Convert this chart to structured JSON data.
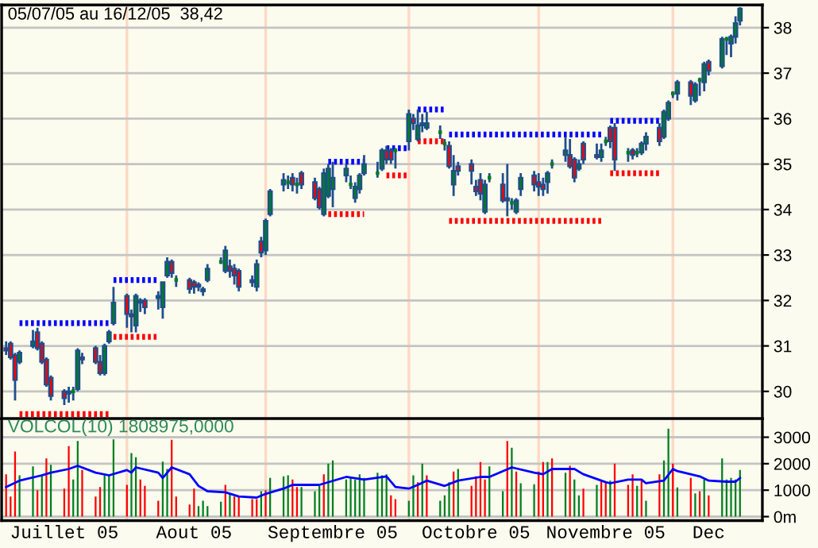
{
  "chart_data": [
    {
      "type": "candlestick",
      "title": "05/07/05 au 16/12/05  38,42",
      "x": [
        "2005-07-05",
        "2005-07-06",
        "2005-07-07",
        "2005-07-08",
        "2005-07-11",
        "2005-07-12",
        "2005-07-13",
        "2005-07-14",
        "2005-07-15",
        "2005-07-18",
        "2005-07-19",
        "2005-07-20",
        "2005-07-21",
        "2005-07-22",
        "2005-07-25",
        "2005-07-26",
        "2005-07-27",
        "2005-07-28",
        "2005-07-29",
        "2005-08-01",
        "2005-08-02",
        "2005-08-03",
        "2005-08-04",
        "2005-08-05",
        "2005-08-08",
        "2005-08-09",
        "2005-08-10",
        "2005-08-11",
        "2005-08-12",
        "2005-08-15",
        "2005-08-16",
        "2005-08-17",
        "2005-08-18",
        "2005-08-19",
        "2005-08-22",
        "2005-08-23",
        "2005-08-24",
        "2005-08-25",
        "2005-08-26",
        "2005-08-29",
        "2005-08-30",
        "2005-08-31",
        "2005-09-01",
        "2005-09-02",
        "2005-09-05",
        "2005-09-06",
        "2005-09-07",
        "2005-09-08",
        "2005-09-09",
        "2005-09-12",
        "2005-09-13",
        "2005-09-14",
        "2005-09-15",
        "2005-09-16",
        "2005-09-19",
        "2005-09-20",
        "2005-09-21",
        "2005-09-22",
        "2005-09-23",
        "2005-09-26",
        "2005-09-27",
        "2005-09-28",
        "2005-09-29",
        "2005-09-30",
        "2005-10-03",
        "2005-10-04",
        "2005-10-05",
        "2005-10-06",
        "2005-10-07",
        "2005-10-10",
        "2005-10-11",
        "2005-10-12",
        "2005-10-13",
        "2005-10-14",
        "2005-10-17",
        "2005-10-18",
        "2005-10-19",
        "2005-10-20",
        "2005-10-21",
        "2005-10-24",
        "2005-10-25",
        "2005-10-26",
        "2005-10-27",
        "2005-10-28",
        "2005-10-31",
        "2005-11-01",
        "2005-11-02",
        "2005-11-03",
        "2005-11-04",
        "2005-11-07",
        "2005-11-08",
        "2005-11-09",
        "2005-11-10",
        "2005-11-11",
        "2005-11-14",
        "2005-11-15",
        "2005-11-16",
        "2005-11-17",
        "2005-11-18",
        "2005-11-21",
        "2005-11-22",
        "2005-11-23",
        "2005-11-24",
        "2005-11-25",
        "2005-11-28",
        "2005-11-29",
        "2005-11-30",
        "2005-12-01",
        "2005-12-02",
        "2005-12-05",
        "2005-12-06",
        "2005-12-07",
        "2005-12-08",
        "2005-12-09",
        "2005-12-12",
        "2005-12-13",
        "2005-12-14",
        "2005-12-15",
        "2005-12-16"
      ],
      "ohlc": [
        [
          30.95,
          31.1,
          30.8,
          30.9
        ],
        [
          31.05,
          31.1,
          30.7,
          30.75
        ],
        [
          30.8,
          30.85,
          29.8,
          30.25
        ],
        [
          30.65,
          30.9,
          30.6,
          30.85
        ],
        [
          31.0,
          31.35,
          30.95,
          31.1
        ],
        [
          31.3,
          31.4,
          30.9,
          30.95
        ],
        [
          31.05,
          31.1,
          30.6,
          30.65
        ],
        [
          30.7,
          30.75,
          30.1,
          30.15
        ],
        [
          30.3,
          30.35,
          29.8,
          29.9
        ],
        [
          30.0,
          30.05,
          29.7,
          29.85
        ],
        [
          29.95,
          30.1,
          29.75,
          30.0
        ],
        [
          30.0,
          30.1,
          29.8,
          30.0
        ],
        [
          30.05,
          30.95,
          30.0,
          30.9
        ],
        [
          30.75,
          30.85,
          30.6,
          30.7
        ],
        [
          30.95,
          31.0,
          30.6,
          30.65
        ],
        [
          30.65,
          30.8,
          30.35,
          30.4
        ],
        [
          30.4,
          31.05,
          30.35,
          31.0
        ],
        [
          31.1,
          31.35,
          31.05,
          31.3
        ],
        [
          31.5,
          32.3,
          31.45,
          31.95
        ],
        [
          32.1,
          32.15,
          31.4,
          31.7
        ],
        [
          31.7,
          31.8,
          31.3,
          31.65
        ],
        [
          31.45,
          32.15,
          31.3,
          32.1
        ],
        [
          31.95,
          32.05,
          31.75,
          32.0
        ],
        [
          32.0,
          32.05,
          31.7,
          31.85
        ],
        [
          32.05,
          32.2,
          31.8,
          32.1
        ],
        [
          31.85,
          32.4,
          31.6,
          32.4
        ],
        [
          32.55,
          32.95,
          32.5,
          32.85
        ],
        [
          32.85,
          32.9,
          32.5,
          32.6
        ],
        [
          32.45,
          32.55,
          32.3,
          32.45
        ],
        [
          32.45,
          32.5,
          32.15,
          32.25
        ],
        [
          32.4,
          32.45,
          32.15,
          32.3
        ],
        [
          32.35,
          32.4,
          32.2,
          32.3
        ],
        [
          32.2,
          32.3,
          32.1,
          32.25
        ],
        [
          32.45,
          32.8,
          32.4,
          32.7
        ],
        [
          32.85,
          32.95,
          32.8,
          32.85
        ],
        [
          32.65,
          33.2,
          32.6,
          33.1
        ],
        [
          32.75,
          32.9,
          32.5,
          32.65
        ],
        [
          32.7,
          32.8,
          32.35,
          32.55
        ],
        [
          32.65,
          32.7,
          32.2,
          32.3
        ],
        [
          32.45,
          32.55,
          32.3,
          32.4
        ],
        [
          32.3,
          32.9,
          32.2,
          32.8
        ],
        [
          33.3,
          33.4,
          32.95,
          33.05
        ],
        [
          33.1,
          33.8,
          33.0,
          33.75
        ],
        [
          33.9,
          34.45,
          33.85,
          34.4
        ],
        [
          34.55,
          34.8,
          34.4,
          34.65
        ],
        [
          34.6,
          34.75,
          34.45,
          34.6
        ],
        [
          34.7,
          34.8,
          34.4,
          34.55
        ],
        [
          34.55,
          34.7,
          34.35,
          34.55
        ],
        [
          34.8,
          34.85,
          34.45,
          34.55
        ],
        [
          34.6,
          34.7,
          34.2,
          34.25
        ],
        [
          34.45,
          34.5,
          34.0,
          34.05
        ],
        [
          33.9,
          34.9,
          33.85,
          34.8
        ],
        [
          34.3,
          35.0,
          34.25,
          34.9
        ],
        [
          34.45,
          35.05,
          34.05,
          34.7
        ],
        [
          34.75,
          35.0,
          34.6,
          34.9
        ],
        [
          34.55,
          34.75,
          34.45,
          34.55
        ],
        [
          34.25,
          34.6,
          34.15,
          34.5
        ],
        [
          34.45,
          34.8,
          34.35,
          34.75
        ],
        [
          34.8,
          35.2,
          34.75,
          35.0
        ],
        [
          34.8,
          35.05,
          34.7,
          34.8
        ],
        [
          34.9,
          35.35,
          34.85,
          35.3
        ],
        [
          35.3,
          35.4,
          35.0,
          35.1
        ],
        [
          35.3,
          35.35,
          35.0,
          35.1
        ],
        [
          35.3,
          35.35,
          34.9,
          35.3
        ],
        [
          35.5,
          36.2,
          35.3,
          36.1
        ],
        [
          36.0,
          36.1,
          35.75,
          35.9
        ],
        [
          35.55,
          36.2,
          35.5,
          35.85
        ],
        [
          35.85,
          36.1,
          35.7,
          35.9
        ],
        [
          35.8,
          36.15,
          35.75,
          35.9
        ],
        [
          35.7,
          35.85,
          35.55,
          35.7
        ],
        [
          35.45,
          35.55,
          35.3,
          35.45
        ],
        [
          35.4,
          35.5,
          34.9,
          34.95
        ],
        [
          34.55,
          35.2,
          34.3,
          34.85
        ],
        [
          34.95,
          35.05,
          34.75,
          34.85
        ],
        [
          35.0,
          35.1,
          34.55,
          34.85
        ],
        [
          34.5,
          34.65,
          34.3,
          34.4
        ],
        [
          34.65,
          34.8,
          34.2,
          34.35
        ],
        [
          33.95,
          34.65,
          33.9,
          34.55
        ],
        [
          34.7,
          34.8,
          34.6,
          34.7
        ],
        [
          34.55,
          34.8,
          34.15,
          34.2
        ],
        [
          34.25,
          35.0,
          33.85,
          34.2
        ],
        [
          34.15,
          34.25,
          34.0,
          34.15
        ],
        [
          33.95,
          34.25,
          33.9,
          34.2
        ],
        [
          34.45,
          34.8,
          34.3,
          34.7
        ],
        [
          34.75,
          34.85,
          34.4,
          34.55
        ],
        [
          34.6,
          34.8,
          34.3,
          34.5
        ],
        [
          34.55,
          34.7,
          34.3,
          34.45
        ],
        [
          34.6,
          34.85,
          34.35,
          34.8
        ],
        [
          35.0,
          35.1,
          34.9,
          35.0
        ],
        [
          35.2,
          35.6,
          35.05,
          35.3
        ],
        [
          35.2,
          35.55,
          34.9,
          34.95
        ],
        [
          35.1,
          35.15,
          34.6,
          34.7
        ],
        [
          34.9,
          35.1,
          34.85,
          35.0
        ],
        [
          35.45,
          35.5,
          35.0,
          35.1
        ],
        [
          35.2,
          35.45,
          35.1,
          35.15
        ],
        [
          35.15,
          35.45,
          35.05,
          35.3
        ],
        [
          35.5,
          35.6,
          35.4,
          35.5
        ],
        [
          35.8,
          35.85,
          35.35,
          35.5
        ],
        [
          35.8,
          35.9,
          34.85,
          35.1
        ],
        [
          35.25,
          35.35,
          35.05,
          35.25
        ],
        [
          35.3,
          35.35,
          35.1,
          35.2
        ],
        [
          35.25,
          35.35,
          35.15,
          35.25
        ],
        [
          35.25,
          35.5,
          35.2,
          35.45
        ],
        [
          35.45,
          35.7,
          35.3,
          35.6
        ],
        [
          35.8,
          35.9,
          35.4,
          35.5
        ],
        [
          35.6,
          36.2,
          35.55,
          36.15
        ],
        [
          36.0,
          36.4,
          35.95,
          36.35
        ],
        [
          36.55,
          36.6,
          36.45,
          36.55
        ],
        [
          36.55,
          36.85,
          36.4,
          36.8
        ],
        [
          36.8,
          36.85,
          36.3,
          36.5
        ],
        [
          36.4,
          36.8,
          36.35,
          36.75
        ],
        [
          36.85,
          36.9,
          36.5,
          36.85
        ],
        [
          36.8,
          37.25,
          36.6,
          37.2
        ],
        [
          37.25,
          37.3,
          36.95,
          37.05
        ],
        [
          37.15,
          37.8,
          37.1,
          37.75
        ],
        [
          37.75,
          37.8,
          37.4,
          37.75
        ],
        [
          37.65,
          37.85,
          37.35,
          37.8
        ],
        [
          37.8,
          38.25,
          37.65,
          38.1
        ],
        [
          38.15,
          38.45,
          38.05,
          38.42
        ]
      ],
      "colors": [
        "#ff0000",
        "#ff0000",
        "#ff0000",
        "#007f1f",
        "#007f1f",
        "#ff0000",
        "#ff0000",
        "#ff0000",
        "#ff0000",
        "#ff0000",
        "#007f1f",
        "#007f1f",
        "#007f1f",
        "#ff0000",
        "#ff0000",
        "#ff0000",
        "#007f1f",
        "#007f1f",
        "#007f1f",
        "#ff0000",
        "#ff0000",
        "#007f1f",
        "#007f1f",
        "#ff0000",
        "#007f1f",
        "#007f1f",
        "#007f1f",
        "#ff0000",
        "#007f1f",
        "#ff0000",
        "#ff0000",
        "#ff0000",
        "#007f1f",
        "#007f1f",
        "#007f1f",
        "#007f1f",
        "#ff0000",
        "#ff0000",
        "#ff0000",
        "#ff0000",
        "#007f1f",
        "#ff0000",
        "#007f1f",
        "#007f1f",
        "#007f1f",
        "#007f1f",
        "#ff0000",
        "#007f1f",
        "#ff0000",
        "#ff0000",
        "#ff0000",
        "#007f1f",
        "#007f1f",
        "#007f1f",
        "#007f1f",
        "#007f1f",
        "#007f1f",
        "#007f1f",
        "#007f1f",
        "#007f1f",
        "#007f1f",
        "#ff0000",
        "#ff0000",
        "#007f1f",
        "#007f1f",
        "#ff0000",
        "#007f1f",
        "#007f1f",
        "#007f1f",
        "#007f1f",
        "#007f1f",
        "#ff0000",
        "#007f1f",
        "#ff0000",
        "#ff0000",
        "#ff0000",
        "#ff0000",
        "#007f1f",
        "#007f1f",
        "#ff0000",
        "#ff0000",
        "#007f1f",
        "#007f1f",
        "#007f1f",
        "#ff0000",
        "#ff0000",
        "#ff0000",
        "#007f1f",
        "#007f1f",
        "#007f1f",
        "#ff0000",
        "#ff0000",
        "#007f1f",
        "#ff0000",
        "#ff0000",
        "#007f1f",
        "#007f1f",
        "#ff0000",
        "#ff0000",
        "#007f1f",
        "#ff0000",
        "#007f1f",
        "#007f1f",
        "#007f1f",
        "#ff0000",
        "#007f1f",
        "#007f1f",
        "#007f1f",
        "#007f1f",
        "#ff0000",
        "#007f1f",
        "#007f1f",
        "#007f1f",
        "#ff0000",
        "#007f1f",
        "#007f1f",
        "#007f1f",
        "#007f1f",
        "#007f1f"
      ],
      "series": [
        {
          "type": "line",
          "x": [
            "2005-07-08",
            "2005-07-28"
          ],
          "values": [
            31.5,
            31.5
          ],
          "color": "#0000ff",
          "line_style": "dotted"
        },
        {
          "type": "line",
          "x": [
            "2005-07-29",
            "2005-08-08"
          ],
          "values": [
            32.45,
            32.45
          ],
          "color": "#0000ff",
          "line_style": "dotted"
        },
        {
          "type": "line",
          "x": [
            "2005-09-15",
            "2005-09-23"
          ],
          "values": [
            35.05,
            35.05
          ],
          "color": "#0000ff",
          "line_style": "dotted"
        },
        {
          "type": "line",
          "x": [
            "2005-09-28",
            "2005-10-03"
          ],
          "values": [
            35.35,
            35.35
          ],
          "color": "#0000ff",
          "line_style": "dotted"
        },
        {
          "type": "line",
          "x": [
            "2005-10-05",
            "2005-10-11"
          ],
          "values": [
            36.2,
            36.2
          ],
          "color": "#0000ff",
          "line_style": "dotted"
        },
        {
          "type": "line",
          "x": [
            "2005-10-12",
            "2005-11-15"
          ],
          "values": [
            35.65,
            35.65
          ],
          "color": "#0000ff",
          "line_style": "dotted"
        },
        {
          "type": "line",
          "x": [
            "2005-11-17",
            "2005-11-28"
          ],
          "values": [
            35.95,
            35.95
          ],
          "color": "#0000ff",
          "line_style": "dotted"
        },
        {
          "type": "line",
          "x": [
            "2005-07-08",
            "2005-07-28"
          ],
          "values": [
            29.5,
            29.5
          ],
          "color": "#ff0000",
          "line_style": "dotted"
        },
        {
          "type": "line",
          "x": [
            "2005-07-29",
            "2005-08-08"
          ],
          "values": [
            31.2,
            31.2
          ],
          "color": "#ff0000",
          "line_style": "dotted"
        },
        {
          "type": "line",
          "x": [
            "2005-09-15",
            "2005-09-23"
          ],
          "values": [
            33.9,
            33.9
          ],
          "color": "#ff0000",
          "line_style": "dotted"
        },
        {
          "type": "line",
          "x": [
            "2005-09-28",
            "2005-10-03"
          ],
          "values": [
            34.75,
            34.75
          ],
          "color": "#ff0000",
          "line_style": "dotted"
        },
        {
          "type": "line",
          "x": [
            "2005-10-05",
            "2005-10-11"
          ],
          "values": [
            35.5,
            35.5
          ],
          "color": "#ff0000",
          "line_style": "dotted"
        },
        {
          "type": "line",
          "x": [
            "2005-10-12",
            "2005-11-15"
          ],
          "values": [
            33.75,
            33.75
          ],
          "color": "#ff0000",
          "line_style": "dotted"
        },
        {
          "type": "line",
          "x": [
            "2005-11-17",
            "2005-11-28"
          ],
          "values": [
            34.8,
            34.8
          ],
          "color": "#ff0000",
          "line_style": "dotted"
        }
      ],
      "xlim": [
        "2005-07-04",
        "2005-12-21"
      ],
      "ylim": [
        29.4,
        38.5
      ],
      "yticks": [
        30,
        31,
        32,
        33,
        34,
        35,
        36,
        37,
        38
      ],
      "grid": "y",
      "tick_labels": "y",
      "ref_lines": [
        {
          "axis": "x",
          "value": "2005-08-01",
          "color": "#ffd8c4"
        },
        {
          "axis": "x",
          "value": "2005-09-01",
          "color": "#ffd8c4"
        },
        {
          "axis": "x",
          "value": "2005-10-03",
          "color": "#ffd8c4"
        },
        {
          "axis": "x",
          "value": "2005-11-01",
          "color": "#ffd8c4"
        },
        {
          "axis": "x",
          "value": "2005-12-01",
          "color": "#ffd8c4"
        }
      ]
    },
    {
      "type": "bar",
      "title": "VOLCOL(10) 1808975,0000",
      "series": [
        {
          "type": "bar",
          "x": [
            "2005-07-05",
            "2005-07-06",
            "2005-07-07",
            "2005-07-08",
            "2005-07-11",
            "2005-07-12",
            "2005-07-13",
            "2005-07-14",
            "2005-07-15",
            "2005-07-18",
            "2005-07-19",
            "2005-07-20",
            "2005-07-21",
            "2005-07-22",
            "2005-07-25",
            "2005-07-26",
            "2005-07-27",
            "2005-07-28",
            "2005-07-29",
            "2005-08-01",
            "2005-08-02",
            "2005-08-03",
            "2005-08-04",
            "2005-08-05",
            "2005-08-08",
            "2005-08-09",
            "2005-08-10",
            "2005-08-11",
            "2005-08-12",
            "2005-08-15",
            "2005-08-16",
            "2005-08-17",
            "2005-08-18",
            "2005-08-19",
            "2005-08-22",
            "2005-08-23",
            "2005-08-24",
            "2005-08-25",
            "2005-08-26",
            "2005-08-29",
            "2005-08-30",
            "2005-08-31",
            "2005-09-01",
            "2005-09-02",
            "2005-09-05",
            "2005-09-06",
            "2005-09-07",
            "2005-09-08",
            "2005-09-09",
            "2005-09-12",
            "2005-09-13",
            "2005-09-14",
            "2005-09-15",
            "2005-09-16",
            "2005-09-19",
            "2005-09-20",
            "2005-09-21",
            "2005-09-22",
            "2005-09-23",
            "2005-09-26",
            "2005-09-27",
            "2005-09-28",
            "2005-09-29",
            "2005-09-30",
            "2005-10-03",
            "2005-10-04",
            "2005-10-05",
            "2005-10-06",
            "2005-10-07",
            "2005-10-10",
            "2005-10-11",
            "2005-10-12",
            "2005-10-13",
            "2005-10-14",
            "2005-10-17",
            "2005-10-18",
            "2005-10-19",
            "2005-10-20",
            "2005-10-21",
            "2005-10-24",
            "2005-10-25",
            "2005-10-26",
            "2005-10-27",
            "2005-10-28",
            "2005-10-31",
            "2005-11-01",
            "2005-11-02",
            "2005-11-03",
            "2005-11-04",
            "2005-11-07",
            "2005-11-08",
            "2005-11-09",
            "2005-11-10",
            "2005-11-11",
            "2005-11-14",
            "2005-11-15",
            "2005-11-16",
            "2005-11-17",
            "2005-11-18",
            "2005-11-21",
            "2005-11-22",
            "2005-11-23",
            "2005-11-24",
            "2005-11-25",
            "2005-11-28",
            "2005-11-29",
            "2005-11-30",
            "2005-12-01",
            "2005-12-02",
            "2005-12-05",
            "2005-12-06",
            "2005-12-07",
            "2005-12-08",
            "2005-12-09",
            "2005-12-12",
            "2005-12-13",
            "2005-12-14",
            "2005-12-15",
            "2005-12-16"
          ],
          "values": [
            1600,
            760,
            2460,
            1560,
            1900,
            1000,
            1600,
            2200,
            1960,
            1060,
            2660,
            1400,
            2860,
            1760,
            760,
            1120,
            1560,
            1560,
            2920,
            1200,
            2400,
            2240,
            1400,
            1160,
            600,
            2080,
            1800,
            2900,
            760,
            460,
            1060,
            400,
            600,
            400,
            560,
            1200,
            860,
            760,
            760,
            660,
            660,
            960,
            1000,
            1460,
            1520,
            1560,
            1400,
            1120,
            1120,
            960,
            1160,
            1600,
            2000,
            2120,
            1400,
            1460,
            1400,
            1600,
            1460,
            1660,
            1560,
            1600,
            800,
            660,
            600,
            1560,
            1300,
            2000,
            1560,
            600,
            800,
            1300,
            1700,
            1800,
            1160,
            1520,
            2060,
            1400,
            1900,
            960,
            2860,
            2600,
            1700,
            1260,
            1220,
            1700,
            2060,
            2060,
            2200,
            1660,
            1920,
            1400,
            800,
            1060,
            1200,
            1360,
            1320,
            1360,
            2000,
            1200,
            1600,
            1160,
            1360,
            600,
            1600,
            2120,
            3320,
            2000,
            1100,
            1460,
            880,
            960,
            1400,
            800,
            2200,
            1400,
            1460,
            1400,
            1760
          ],
          "colors": [
            "#ff0000",
            "#ff0000",
            "#ff0000",
            "#007f1f",
            "#007f1f",
            "#ff0000",
            "#007f1f",
            "#ff0000",
            "#007f1f",
            "#ff0000",
            "#ff0000",
            "#007f1f",
            "#007f1f",
            "#ff0000",
            "#ff0000",
            "#ff0000",
            "#007f1f",
            "#007f1f",
            "#007f1f",
            "#ff0000",
            "#007f1f",
            "#007f1f",
            "#ff0000",
            "#ff0000",
            "#ff0000",
            "#007f1f",
            "#007f1f",
            "#ff0000",
            "#ff0000",
            "#ff0000",
            "#ff0000",
            "#007f1f",
            "#007f1f",
            "#007f1f",
            "#007f1f",
            "#ff0000",
            "#007f1f",
            "#ff0000",
            "#ff0000",
            "#ff0000",
            "#ff0000",
            "#007f1f",
            "#ff0000",
            "#007f1f",
            "#007f1f",
            "#007f1f",
            "#ff0000",
            "#ff0000",
            "#007f1f",
            "#007f1f",
            "#007f1f",
            "#ff0000",
            "#007f1f",
            "#007f1f",
            "#007f1f",
            "#007f1f",
            "#007f1f",
            "#007f1f",
            "#007f1f",
            "#007f1f",
            "#007f1f",
            "#007f1f",
            "#ff0000",
            "#ff0000",
            "#007f1f",
            "#007f1f",
            "#ff0000",
            "#007f1f",
            "#ff0000",
            "#007f1f",
            "#007f1f",
            "#007f1f",
            "#ff0000",
            "#007f1f",
            "#ff0000",
            "#ff0000",
            "#ff0000",
            "#ff0000",
            "#007f1f",
            "#007f1f",
            "#ff0000",
            "#007f1f",
            "#ff0000",
            "#007f1f",
            "#007f1f",
            "#ff0000",
            "#ff0000",
            "#007f1f",
            "#ff0000",
            "#007f1f",
            "#ff0000",
            "#007f1f",
            "#007f1f",
            "#ff0000",
            "#007f1f",
            "#ff0000",
            "#ff0000",
            "#007f1f",
            "#ff0000",
            "#ff0000",
            "#ff0000",
            "#007f1f",
            "#ff0000",
            "#007f1f",
            "#ff0000",
            "#007f1f",
            "#007f1f",
            "#ff0000",
            "#007f1f",
            "#ff0000",
            "#007f1f",
            "#ff0000",
            "#007f1f",
            "#ff0000",
            "#007f1f",
            "#007f1f",
            "#007f1f",
            "#007f1f",
            "#007f1f"
          ]
        },
        {
          "type": "line",
          "color": "#0000ff",
          "x": [
            "2005-07-05",
            "2005-07-08",
            "2005-07-13",
            "2005-07-15",
            "2005-07-19",
            "2005-07-21",
            "2005-07-25",
            "2005-07-28",
            "2005-08-01",
            "2005-08-02",
            "2005-08-03",
            "2005-08-08",
            "2005-08-09",
            "2005-08-11",
            "2005-08-15",
            "2005-08-17",
            "2005-08-19",
            "2005-08-23",
            "2005-08-26",
            "2005-08-30",
            "2005-09-01",
            "2005-09-05",
            "2005-09-07",
            "2005-09-13",
            "2005-09-19",
            "2005-09-23",
            "2005-09-28",
            "2005-09-30",
            "2005-10-03",
            "2005-10-05",
            "2005-10-07",
            "2005-10-11",
            "2005-10-14",
            "2005-10-19",
            "2005-10-21",
            "2005-10-26",
            "2005-10-31",
            "2005-11-02",
            "2005-11-04",
            "2005-11-09",
            "2005-11-11",
            "2005-11-16",
            "2005-11-17",
            "2005-11-21",
            "2005-11-24",
            "2005-11-25",
            "2005-11-29",
            "2005-12-01",
            "2005-12-02",
            "2005-12-07",
            "2005-12-09",
            "2005-12-13",
            "2005-12-15",
            "2005-12-16"
          ],
          "values": [
            1120,
            1360,
            1560,
            1660,
            1800,
            1920,
            1660,
            1560,
            1760,
            1660,
            1860,
            1660,
            1460,
            1860,
            1600,
            1160,
            960,
            920,
            760,
            720,
            860,
            1060,
            1200,
            1200,
            1500,
            1400,
            1520,
            1120,
            1060,
            1200,
            1360,
            1160,
            1360,
            1500,
            1500,
            1860,
            1660,
            1600,
            1800,
            1800,
            1600,
            1300,
            1260,
            1400,
            1400,
            1260,
            1360,
            1800,
            1720,
            1520,
            1360,
            1320,
            1320,
            1460
          ]
        }
      ],
      "xlim": [
        "2005-07-04",
        "2005-12-21"
      ],
      "ylim": [
        -150,
        3700
      ],
      "xticks": [
        {
          "value": "2005-07-18",
          "label": "Juillet 05"
        },
        {
          "value": "2005-08-16",
          "label": "Aout 05"
        },
        {
          "value": "2005-09-16",
          "label": "Septembre 05"
        },
        {
          "value": "2005-10-18",
          "label": "Octobre 05"
        },
        {
          "value": "2005-11-16",
          "label": "Novembre 05"
        },
        {
          "value": "2005-12-09",
          "label": "Dec"
        }
      ],
      "yticks": [
        {
          "value": 0,
          "label": "0m"
        },
        1000,
        2000,
        3000
      ],
      "grid": "y",
      "ref_lines": [
        {
          "axis": "x",
          "value": "2005-08-01",
          "color": "#ffd8c4"
        },
        {
          "axis": "x",
          "value": "2005-09-01",
          "color": "#ffd8c4"
        },
        {
          "axis": "x",
          "value": "2005-10-03",
          "color": "#ffd8c4"
        },
        {
          "axis": "x",
          "value": "2005-11-01",
          "color": "#ffd8c4"
        },
        {
          "axis": "x",
          "value": "2005-12-01",
          "color": "#ffd8c4"
        }
      ]
    }
  ]
}
